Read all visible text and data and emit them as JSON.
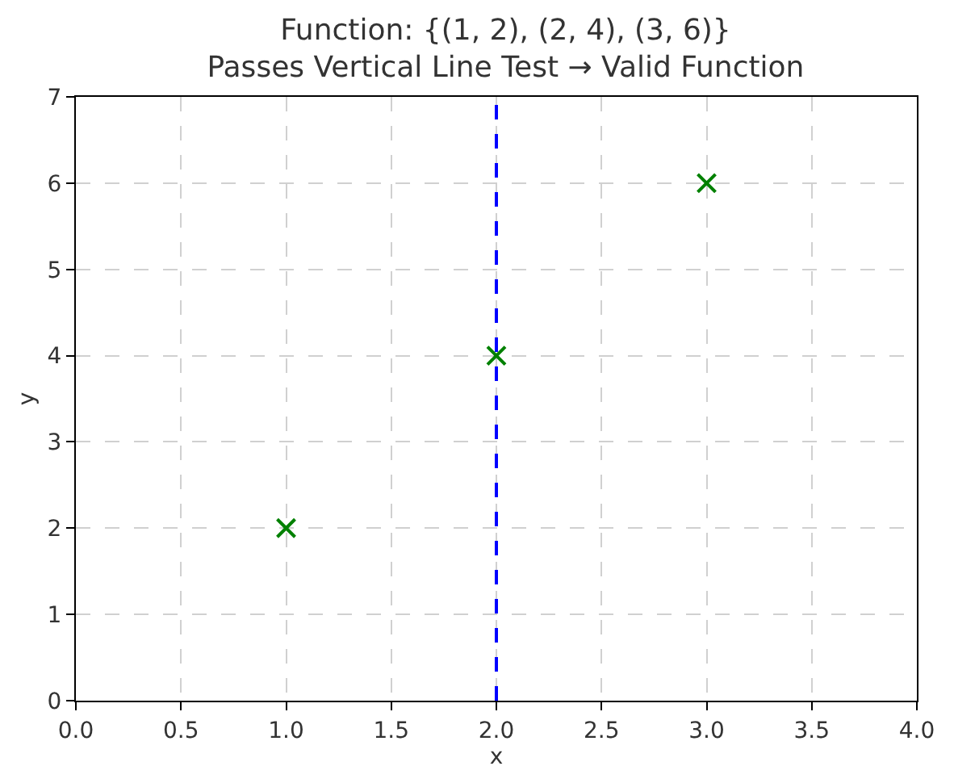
{
  "chart_data": {
    "type": "scatter",
    "title": "Function: {(1, 2), (2, 4), (3, 6)}\nPasses Vertical Line Test → Valid Function",
    "xlabel": "x",
    "ylabel": "y",
    "x": [
      1,
      2,
      3
    ],
    "series": [
      {
        "color": "#008000",
        "values": [
          2,
          4,
          6
        ]
      }
    ],
    "marker": "cross",
    "grid": true,
    "xlim": [
      0,
      4
    ],
    "xticks": [
      {
        "value": 0,
        "label": "0.0"
      },
      {
        "value": 0.5,
        "label": "0.5"
      },
      {
        "value": 1,
        "label": "1.0"
      },
      {
        "value": 1.5,
        "label": "1.5"
      },
      {
        "value": 2,
        "label": "2.0"
      },
      {
        "value": 2.5,
        "label": "2.5"
      },
      {
        "value": 3,
        "label": "3.0"
      },
      {
        "value": 3.5,
        "label": "3.5"
      },
      {
        "value": 4,
        "label": "4.0"
      }
    ],
    "ylim": [
      0,
      7
    ],
    "yticks": [
      0,
      1,
      2,
      3,
      4,
      5,
      6,
      7
    ],
    "ref_lines": [
      {
        "axis": "x",
        "value": 2,
        "color": "#0000ff",
        "line_style": "dashed"
      }
    ]
  }
}
